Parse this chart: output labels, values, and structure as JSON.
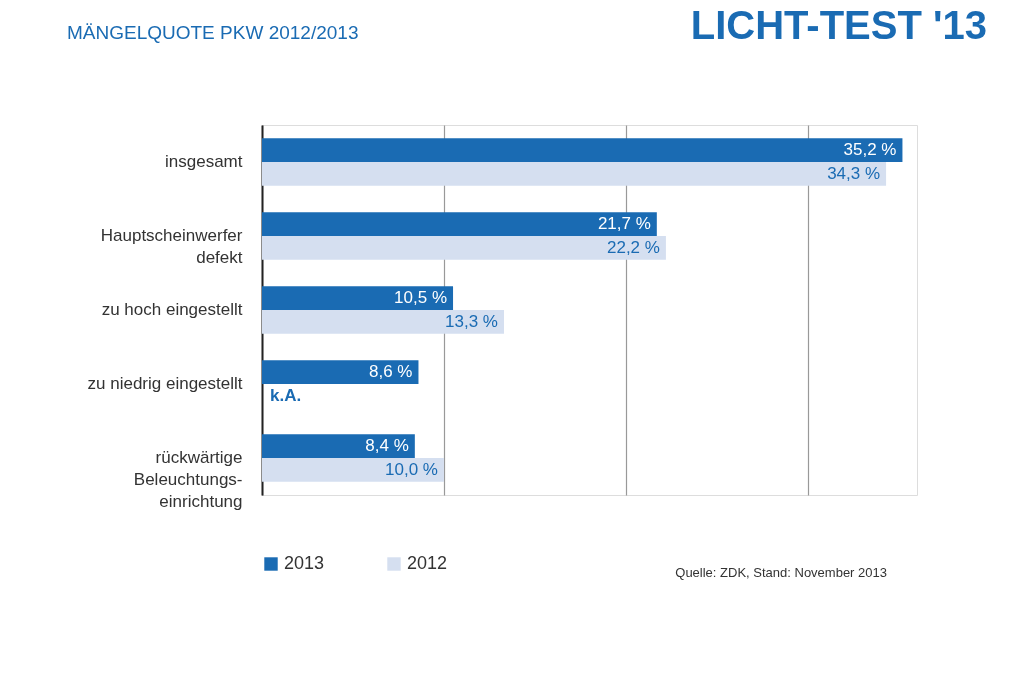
{
  "chart_data": {
    "type": "bar",
    "orientation": "horizontal",
    "title": "MÄNGELQUOTE PKW 2012/2013",
    "subtitle": "LICHT-TEST '13",
    "categories": [
      "insgesamt",
      "Hauptscheinwerfer\ndefekt",
      "zu hoch eingestellt",
      "zu niedrig eingestellt",
      "rückwärtige\nBeleuchtungs-\neinrichtung"
    ],
    "series": [
      {
        "name": "2013",
        "color": "#1a6bb3",
        "values": [
          35.2,
          21.7,
          10.5,
          8.6,
          8.4
        ],
        "value_labels": [
          "35,2 %",
          "21,7 %",
          "10,5 %",
          "8,6 %",
          "8,4 %"
        ]
      },
      {
        "name": "2012",
        "color": "#d5dff0",
        "values": [
          34.3,
          22.2,
          13.3,
          null,
          10.0
        ],
        "value_labels": [
          "34,3 %",
          "22,2 %",
          "13,3 %",
          "k.A.",
          "10,0 %"
        ]
      }
    ],
    "xlim": [
      0,
      36
    ],
    "xticks": [
      {
        "value": 0,
        "label": null
      },
      {
        "value": 10,
        "label": null
      },
      {
        "value": 20,
        "label": null
      },
      {
        "value": 30,
        "label": null
      }
    ],
    "tick_labels": "y",
    "grid": "x",
    "legend": "bottom left",
    "annotations": [
      "Quelle: ZDK, Stand: November 2013"
    ]
  }
}
